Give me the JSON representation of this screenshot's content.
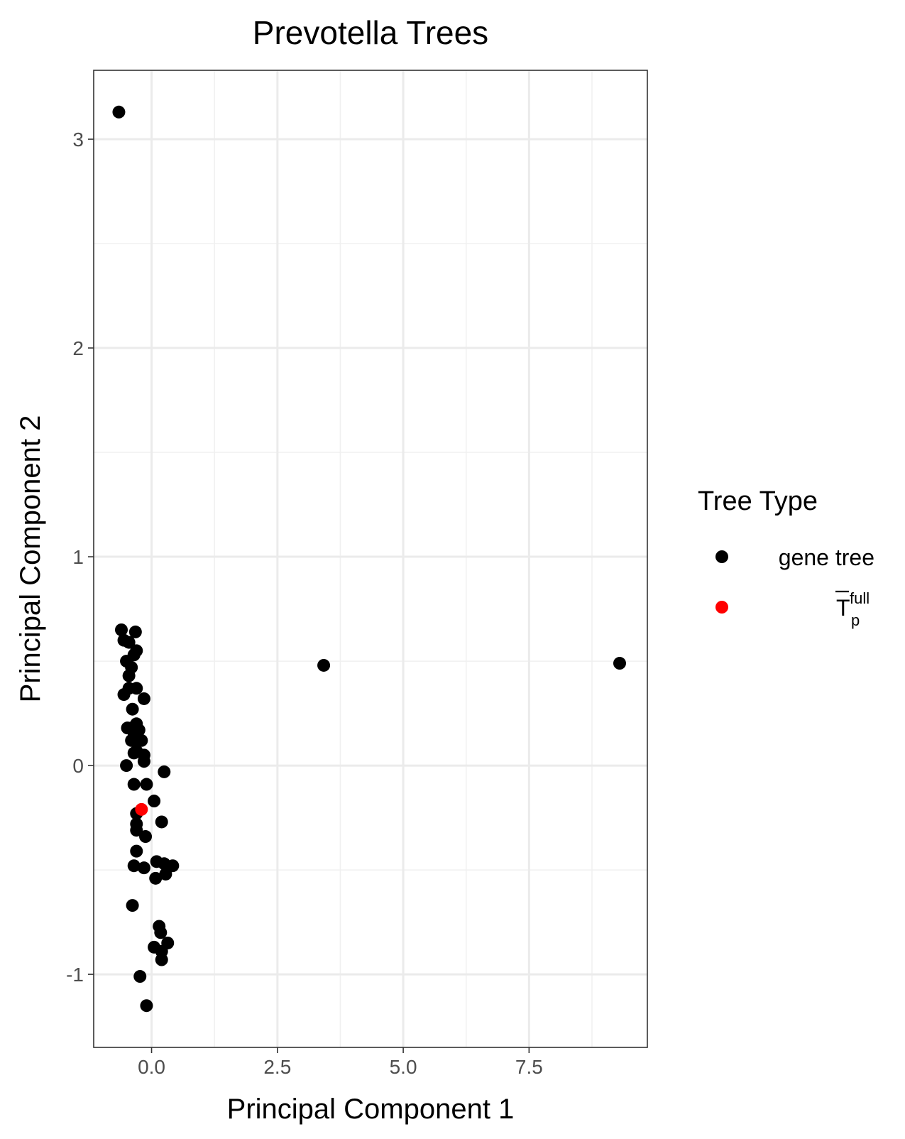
{
  "chart_data": {
    "type": "scatter",
    "title": "Prevotella Trees",
    "xlabel": "Principal Component 1",
    "ylabel": "Principal Component 2",
    "xlim": [
      -1.15,
      9.85
    ],
    "ylim": [
      -1.35,
      3.33
    ],
    "x_ticks": [
      0.0,
      2.5,
      5.0,
      7.5
    ],
    "x_tick_labels": [
      "0.0",
      "2.5",
      "5.0",
      "7.5"
    ],
    "y_ticks": [
      -1,
      0,
      1,
      2,
      3
    ],
    "y_tick_labels": [
      "-1",
      "0",
      "1",
      "2",
      "3"
    ],
    "grid": true,
    "legend": {
      "title": "Tree Type",
      "position": "right",
      "entries": [
        {
          "label": "gene tree",
          "color": "#000000"
        },
        {
          "label": "T",
          "label_sup": "full",
          "label_sub": "p",
          "overline": true,
          "color": "#ff0000"
        }
      ]
    },
    "series": [
      {
        "color": "#000000",
        "points": [
          [
            -0.65,
            3.13
          ],
          [
            -0.6,
            0.65
          ],
          [
            -0.32,
            0.64
          ],
          [
            -0.55,
            0.6
          ],
          [
            -0.45,
            0.59
          ],
          [
            -0.3,
            0.55
          ],
          [
            -0.35,
            0.53
          ],
          [
            -0.5,
            0.5
          ],
          [
            -0.4,
            0.47
          ],
          [
            -0.45,
            0.43
          ],
          [
            -0.55,
            0.34
          ],
          [
            -0.45,
            0.37
          ],
          [
            -0.3,
            0.37
          ],
          [
            -0.15,
            0.32
          ],
          [
            -0.38,
            0.27
          ],
          [
            -0.48,
            0.18
          ],
          [
            -0.3,
            0.2
          ],
          [
            -0.4,
            0.18
          ],
          [
            -0.25,
            0.17
          ],
          [
            -0.35,
            0.14
          ],
          [
            -0.4,
            0.12
          ],
          [
            -0.3,
            0.12
          ],
          [
            -0.2,
            0.12
          ],
          [
            -0.3,
            0.07
          ],
          [
            -0.15,
            0.05
          ],
          [
            -0.35,
            0.06
          ],
          [
            -0.15,
            0.02
          ],
          [
            -0.5,
            0.0
          ],
          [
            0.25,
            -0.03
          ],
          [
            -0.35,
            -0.09
          ],
          [
            -0.1,
            -0.09
          ],
          [
            0.05,
            -0.17
          ],
          [
            -0.3,
            -0.23
          ],
          [
            0.2,
            -0.27
          ],
          [
            -0.3,
            -0.28
          ],
          [
            -0.3,
            -0.31
          ],
          [
            -0.12,
            -0.34
          ],
          [
            -0.3,
            -0.41
          ],
          [
            0.1,
            -0.46
          ],
          [
            0.25,
            -0.47
          ],
          [
            0.42,
            -0.48
          ],
          [
            -0.35,
            -0.48
          ],
          [
            -0.15,
            -0.49
          ],
          [
            0.28,
            -0.52
          ],
          [
            0.08,
            -0.54
          ],
          [
            -0.38,
            -0.67
          ],
          [
            0.15,
            -0.77
          ],
          [
            0.18,
            -0.8
          ],
          [
            0.32,
            -0.85
          ],
          [
            0.05,
            -0.87
          ],
          [
            0.2,
            -0.89
          ],
          [
            0.2,
            -0.93
          ],
          [
            -0.23,
            -1.01
          ],
          [
            -0.1,
            -1.15
          ],
          [
            3.42,
            0.48
          ],
          [
            9.3,
            0.49
          ]
        ]
      },
      {
        "color": "#ff0000",
        "points": [
          [
            -0.2,
            -0.21
          ]
        ]
      }
    ]
  }
}
